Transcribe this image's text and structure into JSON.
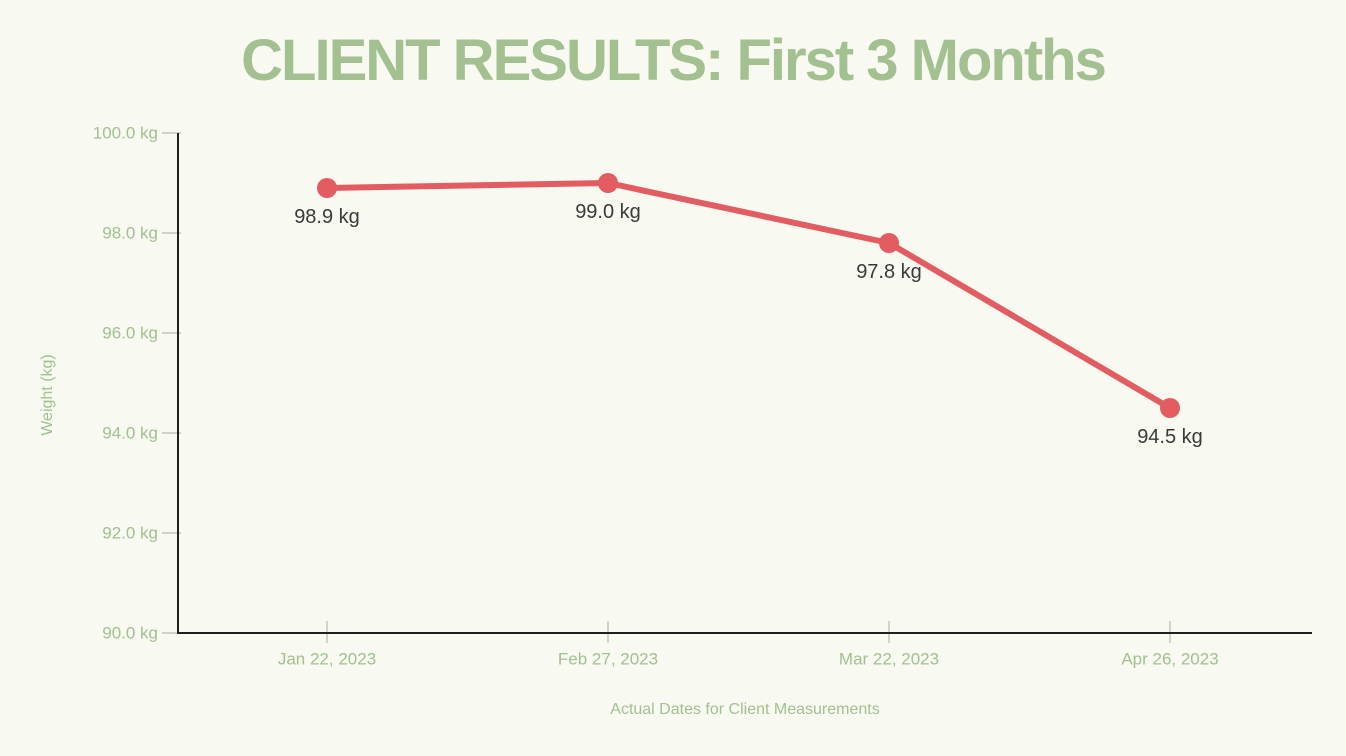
{
  "chart": {
    "title": "CLIENT RESULTS: First 3 Months",
    "xlabel": "Actual Dates for Client Measurements",
    "ylabel": "Weight (kg)"
  },
  "chart_data": {
    "type": "line",
    "title": "CLIENT RESULTS: First 3 Months",
    "xlabel": "Actual Dates for Client Measurements",
    "ylabel": "Weight (kg)",
    "categories": [
      "Jan 22, 2023",
      "Feb 27, 2023",
      "Mar 22, 2023",
      "Apr 26, 2023"
    ],
    "values": [
      98.9,
      99.0,
      97.8,
      94.5
    ],
    "point_labels": [
      "98.9 kg",
      "99.0 kg",
      "97.8 kg",
      "94.5 kg"
    ],
    "ylim": [
      90,
      100
    ],
    "ytick_step": 2,
    "ytick_labels": [
      "90.0 kg",
      "92.0 kg",
      "94.0 kg",
      "96.0 kg",
      "98.0 kg",
      "100.0 kg"
    ],
    "grid": false,
    "legend": false,
    "colors": {
      "line": "#e25c61",
      "point": "#e25c61",
      "axis": "#1f1f1f",
      "tick": "#a9ada0",
      "green_text": "#a3c091",
      "label_text": "#3a3a3a",
      "background": "#f8f9f0"
    }
  }
}
